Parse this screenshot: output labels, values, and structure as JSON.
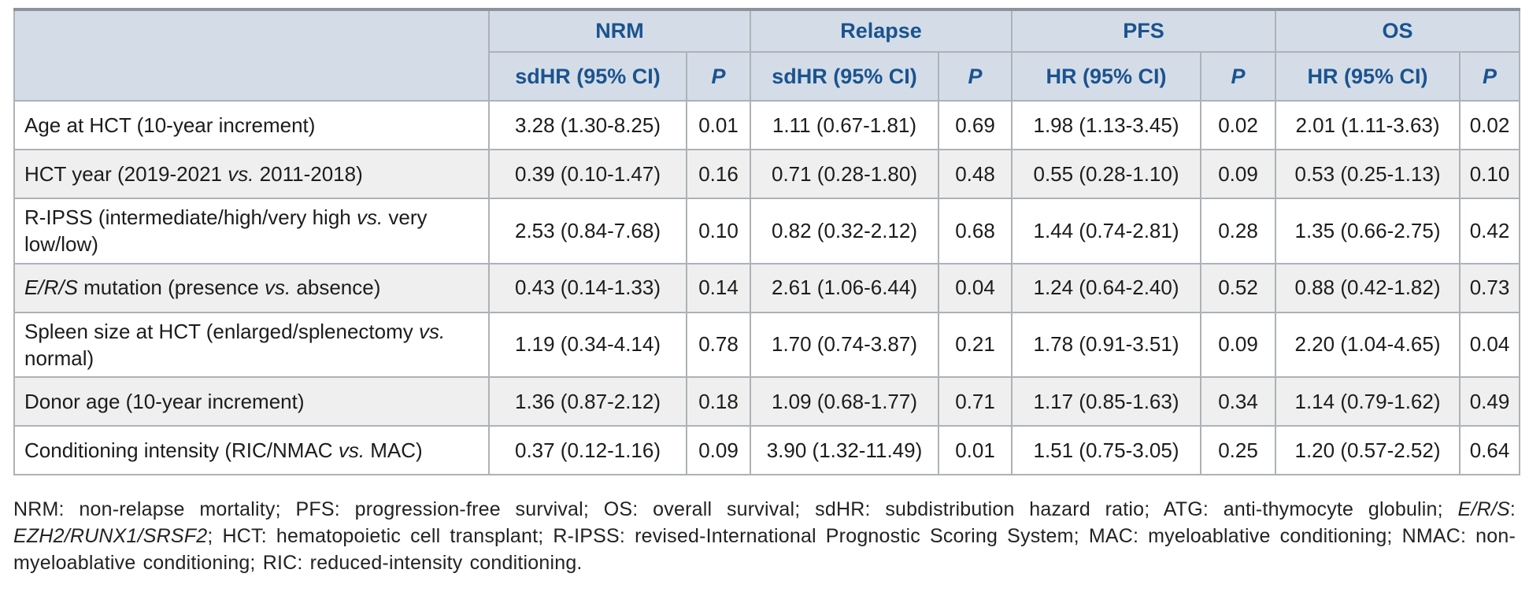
{
  "table": {
    "corner_label": "",
    "groups": [
      {
        "key": "nrm",
        "label": "NRM",
        "effect_header": "sdHR (95% CI)",
        "p_header": "P"
      },
      {
        "key": "relapse",
        "label": "Relapse",
        "effect_header": "sdHR (95% CI)",
        "p_header": "P"
      },
      {
        "key": "pfs",
        "label": "PFS",
        "effect_header": "HR (95% CI)",
        "p_header": "P"
      },
      {
        "key": "os",
        "label": "OS",
        "effect_header": "HR (95% CI)",
        "p_header": "P"
      }
    ],
    "rows": [
      {
        "label": [
          {
            "t": "Age at HCT (10-year increment)"
          }
        ],
        "values": [
          "3.28 (1.30-8.25)",
          "0.01",
          "1.11 (0.67-1.81)",
          "0.69",
          "1.98 (1.13-3.45)",
          "0.02",
          "2.01 (1.11-3.63)",
          "0.02"
        ]
      },
      {
        "label": [
          {
            "t": "HCT year (2019-2021 "
          },
          {
            "t": "vs.",
            "i": true
          },
          {
            "t": " 2011-2018)"
          }
        ],
        "values": [
          "0.39 (0.10-1.47)",
          "0.16",
          "0.71 (0.28-1.80)",
          "0.48",
          "0.55 (0.28-1.10)",
          "0.09",
          "0.53 (0.25-1.13)",
          "0.10"
        ]
      },
      {
        "label": [
          {
            "t": "R-IPSS (intermediate/high/very high "
          },
          {
            "t": "vs.",
            "i": true
          },
          {
            "t": " very low/low)"
          }
        ],
        "values": [
          "2.53 (0.84-7.68)",
          "0.10",
          "0.82 (0.32-2.12)",
          "0.68",
          "1.44 (0.74-2.81)",
          "0.28",
          "1.35 (0.66-2.75)",
          "0.42"
        ]
      },
      {
        "label": [
          {
            "t": "E/R/S",
            "i": true
          },
          {
            "t": " mutation (presence "
          },
          {
            "t": "vs.",
            "i": true
          },
          {
            "t": " absence)"
          }
        ],
        "values": [
          "0.43 (0.14-1.33)",
          "0.14",
          "2.61 (1.06-6.44)",
          "0.04",
          "1.24 (0.64-2.40)",
          "0.52",
          "0.88 (0.42-1.82)",
          "0.73"
        ]
      },
      {
        "label": [
          {
            "t": "Spleen size at HCT (enlarged/splenectomy "
          },
          {
            "t": "vs.",
            "i": true
          },
          {
            "t": " normal)"
          }
        ],
        "values": [
          "1.19 (0.34-4.14)",
          "0.78",
          "1.70 (0.74-3.87)",
          "0.21",
          "1.78 (0.91-3.51)",
          "0.09",
          "2.20 (1.04-4.65)",
          "0.04"
        ]
      },
      {
        "label": [
          {
            "t": "Donor age (10-year increment)"
          }
        ],
        "values": [
          "1.36 (0.87-2.12)",
          "0.18",
          "1.09 (0.68-1.77)",
          "0.71",
          "1.17 (0.85-1.63)",
          "0.34",
          "1.14 (0.79-1.62)",
          "0.49"
        ]
      },
      {
        "label": [
          {
            "t": "Conditioning intensity (RIC/NMAC "
          },
          {
            "t": "vs.",
            "i": true
          },
          {
            "t": " MAC)"
          }
        ],
        "values": [
          "0.37 (0.12-1.16)",
          "0.09",
          "3.90 (1.32-11.49)",
          "0.01",
          "1.51 (0.75-3.05)",
          "0.25",
          "1.20 (0.57-2.52)",
          "0.64"
        ]
      }
    ]
  },
  "footnote": [
    {
      "t": "NRM: non-relapse mortality; PFS: progression-free survival; OS: overall survival; sdHR: subdistribution hazard ratio; ATG: anti-thymocyte globulin; "
    },
    {
      "t": "E/R/S",
      "i": true
    },
    {
      "t": ": "
    },
    {
      "t": "EZH2/RUNX1/SRSF2",
      "i": true
    },
    {
      "t": "; HCT: hematopoietic cell transplant; R-IPSS: revised-International Prognostic Scoring System; MAC: myeloablative conditioning; NMAC: non-myeloablative conditioning; RIC: reduced-intensity conditioning."
    }
  ],
  "colors": {
    "header_bg": "#d4dde7",
    "header_text": "#1b538f",
    "row_alt_bg": "#efefef",
    "border": "#adb2b8",
    "top_border": "#8c939b",
    "body_text": "#1c1c1c"
  }
}
